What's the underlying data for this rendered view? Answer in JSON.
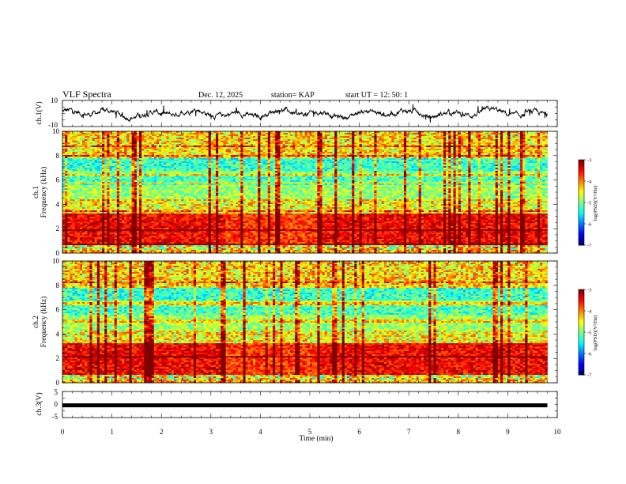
{
  "header": {
    "title": "VLF Spectra",
    "date": "Dec. 12, 2025",
    "station": "station= KAP",
    "start": "start  UT =   12: 50: 1"
  },
  "chart_data": [
    {
      "type": "line",
      "panel": "ch1-waveform",
      "ylabel": "ch.1(V)",
      "ylim": [
        -10,
        10
      ],
      "yticks": [
        "10",
        "-10"
      ],
      "xlim": [
        0,
        10
      ],
      "series_color": "#000000",
      "description_values": "noisy waveform oscillating roughly between -6 V and +6 V over 0–9.8 min"
    },
    {
      "type": "heatmap",
      "panel": "ch1-spectrogram",
      "ylabel_top": "ch.1",
      "ylabel": "Frequency  (kHz)",
      "ylim": [
        0,
        10
      ],
      "yticks": [
        "0",
        "2",
        "4",
        "6",
        "8",
        "10"
      ],
      "xlim": [
        0,
        10
      ],
      "data_extent_min": 9.8,
      "colorbar": {
        "label": "log(PSD)(V²/Hz)",
        "range": [
          -7,
          -3
        ],
        "ticks": [
          "-3",
          "-4",
          "-5",
          "-6",
          "-7"
        ]
      }
    },
    {
      "type": "heatmap",
      "panel": "ch2-spectrogram",
      "ylabel_top": "ch.2",
      "ylabel": "Frequency  (kHz)",
      "ylim": [
        0,
        10
      ],
      "yticks": [
        "0",
        "2",
        "4",
        "6",
        "8",
        "10"
      ],
      "xlim": [
        0,
        10
      ],
      "data_extent_min": 9.8,
      "colorbar": {
        "label": "log(PSD)(V²/Hz)",
        "range": [
          -7,
          -3
        ],
        "ticks": [
          "-3",
          "-4",
          "-5",
          "-6",
          "-7"
        ]
      }
    },
    {
      "type": "line",
      "panel": "ch3-waveform",
      "ylabel": "ch.3(V)",
      "ylim": [
        -5,
        5
      ],
      "yticks": [
        "5",
        "0",
        "-5"
      ],
      "xlim": [
        0,
        10
      ],
      "xlabel": "Time  (min)",
      "xticks": [
        "0",
        "1",
        "2",
        "3",
        "4",
        "5",
        "6",
        "7",
        "8",
        "9",
        "10"
      ],
      "constant_value": -0.3
    }
  ]
}
